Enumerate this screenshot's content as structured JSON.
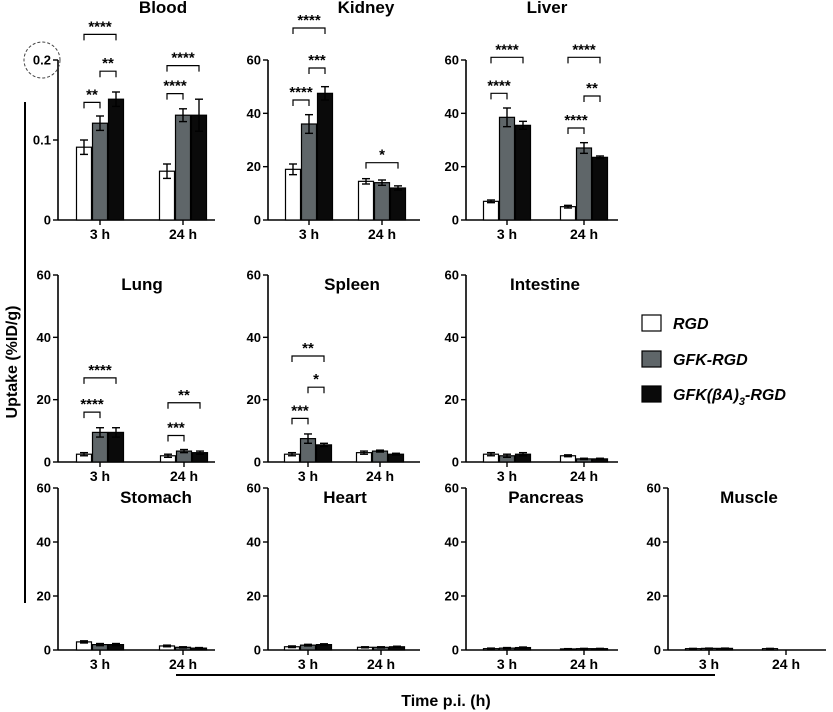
{
  "chart_data": {
    "type": "bar",
    "title": "",
    "ylabel": "Uptake (%ID/g)",
    "xlabel": "Time p.i. (h)",
    "categories": [
      "3 h",
      "24 h"
    ],
    "series_names": [
      "RGD",
      "GFK-RGD",
      "GFK(βA)3-RGD"
    ],
    "colors": {
      "RGD": "#ffffff",
      "GFK-RGD": "#5f6669",
      "GFK(βA)3-RGD": "#0a0a0a"
    },
    "legend": {
      "position": "right",
      "items": [
        {
          "label": "RGD",
          "sub": "",
          "tail": ""
        },
        {
          "label": "GFK-RGD",
          "sub": "",
          "tail": ""
        },
        {
          "label": "GFK(βA)",
          "sub": "3",
          "tail": "-RGD"
        }
      ]
    },
    "panels": [
      {
        "title": "Blood",
        "ylim": [
          0,
          0.2
        ],
        "yticks": [
          "0",
          "0.1",
          "0.2"
        ],
        "highlight_tick": "0.2",
        "values": {
          "3 h": [
            0.091,
            0.121,
            0.151
          ],
          "24 h": [
            0.061,
            0.131,
            0.131
          ]
        },
        "errors": {
          "3 h": [
            0.009,
            0.009,
            0.009
          ],
          "24 h": [
            0.009,
            0.008,
            0.02
          ]
        },
        "significance": [
          {
            "cat": "3 h",
            "from": 0,
            "to": 2,
            "label": "****",
            "at": 0.232
          },
          {
            "cat": "3 h",
            "from": 0,
            "to": 1,
            "label": "**",
            "at": 0.147
          },
          {
            "cat": "3 h",
            "from": 1,
            "to": 2,
            "label": "**",
            "at": 0.186
          },
          {
            "cat": "24 h",
            "from": 0,
            "to": 2,
            "label": "****",
            "at": 0.193
          },
          {
            "cat": "24 h",
            "from": 0,
            "to": 1,
            "label": "****",
            "at": 0.158
          }
        ]
      },
      {
        "title": "Kidney",
        "ylim": [
          0,
          60
        ],
        "yticks": [
          "0",
          "20",
          "40",
          "60"
        ],
        "values": {
          "3 h": [
            19,
            36,
            47.5
          ],
          "24 h": [
            14.5,
            14,
            12
          ]
        },
        "errors": {
          "3 h": [
            2,
            3.5,
            2.5
          ],
          "24 h": [
            1,
            1,
            0.8
          ]
        },
        "significance": [
          {
            "cat": "3 h",
            "from": 0,
            "to": 2,
            "label": "****",
            "at": 72
          },
          {
            "cat": "3 h",
            "from": 1,
            "to": 2,
            "label": "***",
            "at": 57
          },
          {
            "cat": "3 h",
            "from": 0,
            "to": 1,
            "label": "****",
            "at": 45
          },
          {
            "cat": "24 h",
            "from": 0,
            "to": 2,
            "label": "*",
            "at": 21.5
          }
        ]
      },
      {
        "title": "Liver",
        "ylim": [
          0,
          60
        ],
        "yticks": [
          "0",
          "20",
          "40",
          "60"
        ],
        "values": {
          "3 h": [
            7,
            38.5,
            35.5
          ],
          "24 h": [
            5,
            27,
            23.5
          ]
        },
        "errors": {
          "3 h": [
            0.5,
            3.5,
            1.5
          ],
          "24 h": [
            0.5,
            2,
            0.5
          ]
        },
        "significance": [
          {
            "cat": "3 h",
            "from": 0,
            "to": 2,
            "label": "****",
            "at": 61
          },
          {
            "cat": "3 h",
            "from": 0,
            "to": 1,
            "label": "****",
            "at": 47.5
          },
          {
            "cat": "24 h",
            "from": 0,
            "to": 2,
            "label": "****",
            "at": 61
          },
          {
            "cat": "24 h",
            "from": 1,
            "to": 2,
            "label": "**",
            "at": 46.5
          },
          {
            "cat": "24 h",
            "from": 0,
            "to": 1,
            "label": "****",
            "at": 34.5
          }
        ]
      },
      {
        "title": "Lung",
        "ylim": [
          0,
          60
        ],
        "yticks": [
          "0",
          "20",
          "40",
          "60"
        ],
        "values": {
          "3 h": [
            2.5,
            9.5,
            9.5
          ],
          "24 h": [
            2,
            3.5,
            3
          ]
        },
        "errors": {
          "3 h": [
            0.5,
            1.5,
            1.5
          ],
          "24 h": [
            0.5,
            0.5,
            0.5
          ]
        },
        "significance": [
          {
            "cat": "3 h",
            "from": 0,
            "to": 2,
            "label": "****",
            "at": 27
          },
          {
            "cat": "3 h",
            "from": 0,
            "to": 1,
            "label": "****",
            "at": 16
          },
          {
            "cat": "24 h",
            "from": 0,
            "to": 2,
            "label": "**",
            "at": 19
          },
          {
            "cat": "24 h",
            "from": 0,
            "to": 1,
            "label": "***",
            "at": 8.5
          }
        ]
      },
      {
        "title": "Spleen",
        "ylim": [
          0,
          60
        ],
        "yticks": [
          "0",
          "20",
          "40",
          "60"
        ],
        "values": {
          "3 h": [
            2.5,
            7.5,
            5.5
          ],
          "24 h": [
            3,
            3.5,
            2.5
          ]
        },
        "errors": {
          "3 h": [
            0.5,
            1.5,
            0.5
          ],
          "24 h": [
            0.5,
            0.3,
            0.3
          ]
        },
        "significance": [
          {
            "cat": "3 h",
            "from": 0,
            "to": 2,
            "label": "**",
            "at": 34
          },
          {
            "cat": "3 h",
            "from": 1,
            "to": 2,
            "label": "*",
            "at": 24
          },
          {
            "cat": "3 h",
            "from": 0,
            "to": 1,
            "label": "***",
            "at": 14
          }
        ]
      },
      {
        "title": "Intestine",
        "ylim": [
          0,
          60
        ],
        "yticks": [
          "0",
          "20",
          "40",
          "60"
        ],
        "values": {
          "3 h": [
            2.5,
            2,
            2.5
          ],
          "24 h": [
            2,
            1,
            1
          ]
        },
        "errors": {
          "3 h": [
            0.5,
            0.5,
            0.5
          ],
          "24 h": [
            0.3,
            0.2,
            0.2
          ]
        },
        "significance": []
      },
      {
        "title": "Stomach",
        "ylim": [
          0,
          60
        ],
        "yticks": [
          "0",
          "20",
          "40",
          "60"
        ],
        "values": {
          "3 h": [
            3,
            2,
            2
          ],
          "24 h": [
            1.5,
            1,
            0.7
          ]
        },
        "errors": {
          "3 h": [
            0.4,
            0.4,
            0.4
          ],
          "24 h": [
            0.3,
            0.2,
            0.2
          ]
        },
        "significance": []
      },
      {
        "title": "Heart",
        "ylim": [
          0,
          60
        ],
        "yticks": [
          "0",
          "20",
          "40",
          "60"
        ],
        "values": {
          "3 h": [
            1.2,
            1.8,
            2
          ],
          "24 h": [
            1,
            1,
            1.2
          ]
        },
        "errors": {
          "3 h": [
            0.3,
            0.3,
            0.3
          ],
          "24 h": [
            0.2,
            0.2,
            0.2
          ]
        },
        "significance": []
      },
      {
        "title": "Pancreas",
        "ylim": [
          0,
          60
        ],
        "yticks": [
          "0",
          "20",
          "40",
          "60"
        ],
        "values": {
          "3 h": [
            0.5,
            0.7,
            0.9
          ],
          "24 h": [
            0.4,
            0.5,
            0.5
          ]
        },
        "errors": {
          "3 h": [
            0.2,
            0.2,
            0.2
          ],
          "24 h": [
            0.1,
            0.1,
            0.1
          ]
        },
        "significance": []
      },
      {
        "title": "Muscle",
        "ylim": [
          0,
          60
        ],
        "yticks": [
          "0",
          "20",
          "40",
          "60"
        ],
        "values": {
          "3 h": [
            0.5,
            0.6,
            0.6
          ],
          "24 h": [
            0.5,
            0,
            0
          ]
        },
        "errors": {
          "3 h": [
            0.1,
            0.1,
            0.1
          ],
          "24 h": [
            0.1,
            0,
            0
          ]
        },
        "significance": []
      }
    ]
  }
}
